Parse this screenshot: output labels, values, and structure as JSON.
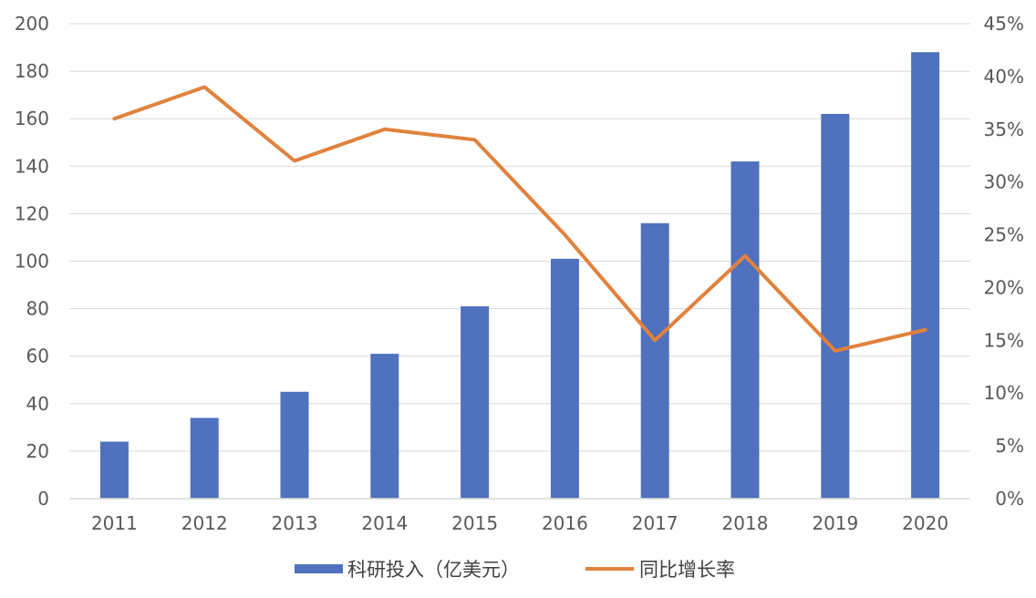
{
  "chart_data": {
    "type": "bar",
    "categories": [
      "2011",
      "2012",
      "2013",
      "2014",
      "2015",
      "2016",
      "2017",
      "2018",
      "2019",
      "2020"
    ],
    "series": [
      {
        "name": "科研投入（亿美元）",
        "type": "bar",
        "axis": "left",
        "color": "#4F71BE",
        "values": [
          24,
          34,
          45,
          61,
          81,
          101,
          116,
          142,
          162,
          188
        ]
      },
      {
        "name": "同比增长率",
        "type": "line",
        "axis": "right",
        "color": "#E0823D",
        "values": [
          0.36,
          0.39,
          0.32,
          0.35,
          0.34,
          0.25,
          0.15,
          0.23,
          0.14,
          0.16
        ]
      }
    ],
    "left_axis": {
      "min": 0,
      "max": 200,
      "ticks": [
        "0",
        "20",
        "40",
        "60",
        "80",
        "100",
        "120",
        "140",
        "160",
        "180",
        "200"
      ]
    },
    "right_axis": {
      "min": 0,
      "max": 0.45,
      "ticks": [
        "0%",
        "5%",
        "10%",
        "15%",
        "20%",
        "25%",
        "30%",
        "35%",
        "40%",
        "45%"
      ]
    },
    "grid": true,
    "legend_position": "bottom"
  }
}
